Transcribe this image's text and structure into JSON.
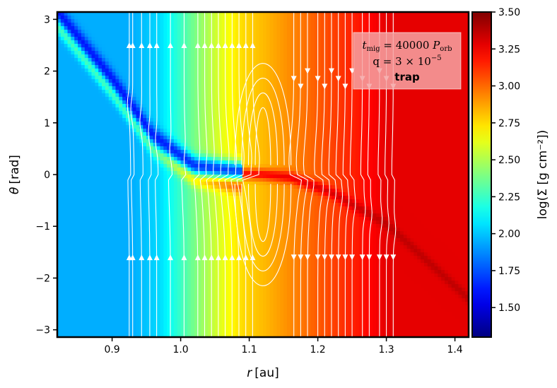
{
  "chart_data": {
    "type": "heatmap",
    "xlabel_main": "r",
    "xlabel_unit": "[au]",
    "ylabel_main": "θ",
    "ylabel_unit": "[rad]",
    "xlim": [
      0.82,
      1.42
    ],
    "ylim": [
      -3.14159,
      3.14159
    ],
    "xticks": [
      0.9,
      1.0,
      1.1,
      1.2,
      1.3,
      1.4
    ],
    "xtick_labels": [
      "0.9",
      "1.0",
      "1.1",
      "1.2",
      "1.3",
      "1.4"
    ],
    "yticks": [
      -3,
      -2,
      -1,
      0,
      1,
      2,
      3
    ],
    "ytick_labels": [
      "−3",
      "−2",
      "−1",
      "0",
      "1",
      "2",
      "3"
    ],
    "colorbar": {
      "label": "log(Σ [g cm⁻²])",
      "range": [
        1.3,
        3.5
      ],
      "ticks": [
        1.5,
        1.75,
        2.0,
        2.25,
        2.5,
        2.75,
        3.0,
        3.25,
        3.5
      ],
      "tick_labels": [
        "1.50",
        "1.75",
        "2.00",
        "2.25",
        "2.50",
        "2.75",
        "3.00",
        "3.25",
        "3.50"
      ],
      "colormap": "jet"
    },
    "background_profile": {
      "r": [
        0.82,
        0.93,
        0.97,
        1.0,
        1.03,
        1.06,
        1.09,
        1.12,
        1.15,
        1.18,
        1.22,
        1.26,
        1.3,
        1.42
      ],
      "log_sigma": [
        1.95,
        1.95,
        2.05,
        2.25,
        2.45,
        2.62,
        2.75,
        2.82,
        2.9,
        2.98,
        3.08,
        3.18,
        3.28,
        3.28
      ]
    },
    "spiral_wake": {
      "description_points_r": [
        0.82,
        0.9,
        0.96,
        1.02,
        1.08,
        1.12,
        1.16,
        1.22,
        1.3,
        1.42
      ],
      "description_points_theta": [
        3.1,
        1.8,
        0.7,
        0.12,
        0.02,
        0.0,
        -0.05,
        -0.35,
        -0.95,
        -2.4
      ],
      "trough_log_sigma": 1.55,
      "crest_log_sigma": 3.4
    },
    "streamline_r": [
      0.925,
      0.93,
      0.943,
      0.955,
      0.965,
      0.985,
      1.005,
      1.025,
      1.035,
      1.045,
      1.055,
      1.065,
      1.075,
      1.085,
      1.095,
      1.105,
      1.165,
      1.175,
      1.185,
      1.2,
      1.21,
      1.22,
      1.23,
      1.24,
      1.25,
      1.265,
      1.275,
      1.29,
      1.3,
      1.31
    ],
    "horseshoe": {
      "center_r": 1.12,
      "half_width_r": 0.045
    },
    "annotation": {
      "tmig_prefix": "t",
      "tmig_sub": "mig",
      "tmig_value": " = 40000 ",
      "porb": "P",
      "porb_sub": "orb",
      "q_text": "q = 3 × 10",
      "q_exp": "−5",
      "tag": "trap",
      "box_color": "#f4a3a3"
    }
  }
}
